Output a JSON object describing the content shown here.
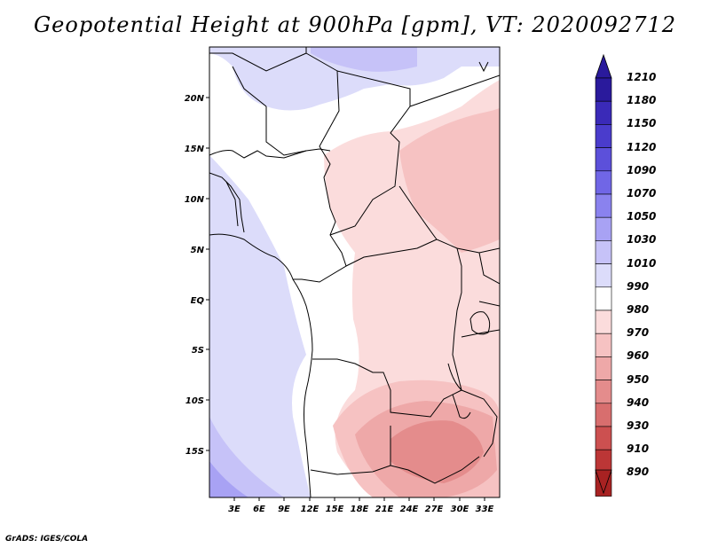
{
  "title": "Geopotential Height at 900hPa [gpm], VT: 2020092712",
  "footer": "GrADS: IGES/COLA",
  "y_axis_labels": [
    "20N",
    "15N",
    "10N",
    "5N",
    "EQ",
    "5S",
    "10S",
    "15S"
  ],
  "x_axis_labels": [
    "3E",
    "6E",
    "9E",
    "12E",
    "15E",
    "18E",
    "21E",
    "24E",
    "27E",
    "30E",
    "33E"
  ],
  "colorbar": {
    "levels": [
      "1210",
      "1180",
      "1150",
      "1120",
      "1090",
      "1070",
      "1050",
      "1030",
      "1010",
      "990",
      "980",
      "970",
      "960",
      "950",
      "940",
      "930",
      "910",
      "890"
    ],
    "colors": [
      "#2a1a9c",
      "#3a2ab8",
      "#4a3ccc",
      "#5c50da",
      "#7066e6",
      "#8a82ee",
      "#a8a2f4",
      "#c6c2f8",
      "#dcdcfa",
      "#ffffff",
      "#fbdcdc",
      "#f6c2c2",
      "#eea8a8",
      "#e48c8c",
      "#d86e6e",
      "#cc5050",
      "#bc3636",
      "#a82222"
    ],
    "arrow_top_color": "#2a1a9c",
    "arrow_bottom_color": "#a82222"
  }
}
